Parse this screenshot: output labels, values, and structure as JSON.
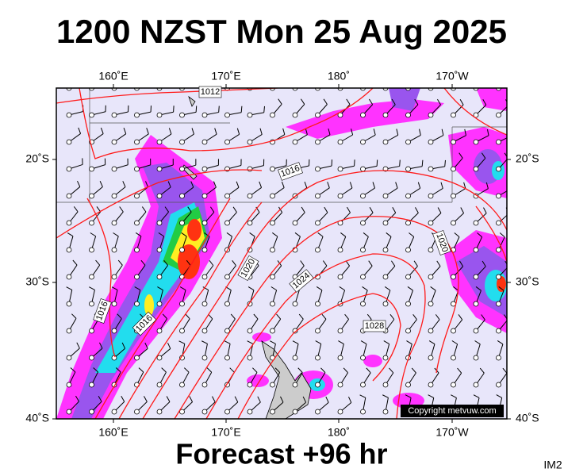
{
  "header": {
    "title": "1200 NZST Mon 25 Aug 2025"
  },
  "map": {
    "top_labels": [
      "160˚E",
      "170˚E",
      "180˚",
      "170˚W"
    ],
    "bottom_labels": [
      "160˚E",
      "170˚E",
      "180˚",
      "170˚W"
    ],
    "left_labels": [
      "20˚S",
      "30˚S",
      "40˚S"
    ],
    "right_labels": [
      "20˚S",
      "30˚S",
      "40˚S"
    ],
    "isobar_labels": [
      "1012",
      "1016",
      "1020",
      "1020",
      "1024",
      "1028",
      "1016",
      "1016"
    ],
    "copyright": "Copyright metvuw.com"
  },
  "footer": {
    "caption": "Forecast +96 hr",
    "code": "IM2"
  }
}
